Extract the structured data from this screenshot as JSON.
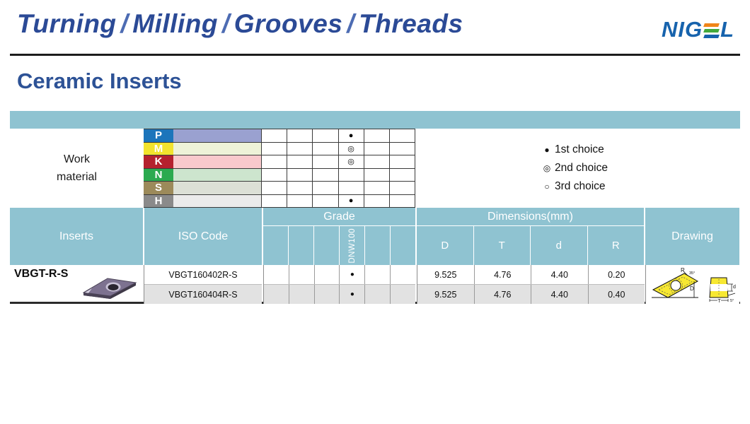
{
  "header": {
    "title_words": [
      "Turning",
      "Milling",
      "Grooves",
      "Threads"
    ],
    "separator": "/",
    "logo": {
      "name": "NIGEL",
      "text_left": "NIG",
      "text_right": "L",
      "color": "#1763ad",
      "bar_colors": [
        "#f08519",
        "#43a93c",
        "#1763ad"
      ]
    },
    "title_color": "#2b4a96"
  },
  "page": {
    "section_title": "Ceramic Inserts"
  },
  "legend": [
    {
      "symbol": "●",
      "label": "1st choice"
    },
    {
      "symbol": "◎",
      "label": "2nd choice"
    },
    {
      "symbol": "○",
      "label": "3rd choice"
    }
  ],
  "work_material": {
    "label_line1": "Work",
    "label_line2": "material",
    "rows": [
      {
        "code": "P",
        "label_bg": "#1c75bb",
        "band_bg": "#9aa1d0",
        "choices": [
          "",
          "",
          "",
          "●",
          "",
          ""
        ]
      },
      {
        "code": "M",
        "label_bg": "#f2e32e",
        "band_bg": "#eef3d8",
        "choices": [
          "",
          "",
          "",
          "◎",
          "",
          ""
        ]
      },
      {
        "code": "K",
        "label_bg": "#b5212e",
        "band_bg": "#f9c9cc",
        "choices": [
          "",
          "",
          "",
          "◎",
          "",
          ""
        ]
      },
      {
        "code": "N",
        "label_bg": "#2baa4f",
        "band_bg": "#cde5ce",
        "choices": [
          "",
          "",
          "",
          "",
          "",
          ""
        ]
      },
      {
        "code": "S",
        "label_bg": "#9c8a5a",
        "band_bg": "#dce0d6",
        "choices": [
          "",
          "",
          "",
          "",
          "",
          ""
        ]
      },
      {
        "code": "H",
        "label_bg": "#8a8a8a",
        "band_bg": "#ebebeb",
        "choices": [
          "",
          "",
          "",
          "●",
          "",
          ""
        ]
      }
    ]
  },
  "table": {
    "header_bg": "#8fc3d1",
    "headers": {
      "inserts": "Inserts",
      "iso_code": "ISO Code",
      "grade": "Grade",
      "dimensions": "Dimensions(mm)",
      "drawing": "Drawing",
      "grade_cols": [
        "",
        "",
        "",
        "DNW100",
        "",
        ""
      ],
      "dim_cols": [
        "D",
        "T",
        "d",
        "R"
      ]
    },
    "product": {
      "name": "VBGT-R-S"
    },
    "rows": [
      {
        "iso_code": "VBGT160402R-S",
        "grades": [
          "",
          "",
          "",
          "●",
          "",
          ""
        ],
        "dims": [
          "9.525",
          "4.76",
          "4.40",
          "0.20"
        ]
      },
      {
        "iso_code": "VBGT160404R-S",
        "grades": [
          "",
          "",
          "",
          "●",
          "",
          ""
        ],
        "dims": [
          "9.525",
          "4.76",
          "4.40",
          "0.40"
        ]
      }
    ]
  },
  "drawing_labels": {
    "r": "R",
    "angle_top": "35°",
    "d_major": "D",
    "d_hole": "d",
    "angle_side": "5°",
    "t": "T"
  }
}
